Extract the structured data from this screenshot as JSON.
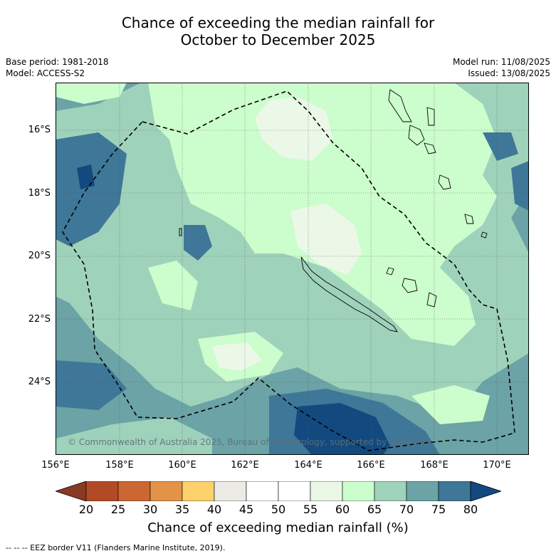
{
  "title": {
    "line1": "Chance of exceeding the median rainfall for",
    "line2": "October to December 2025"
  },
  "meta": {
    "base_period": "Base period: 1981-2018",
    "model": "Model: ACCESS-S2",
    "model_run": "Model run: 11/08/2025",
    "issued": "Issued: 13/08/2025"
  },
  "map": {
    "lat_labels": [
      "16°S",
      "18°S",
      "20°S",
      "22°S",
      "24°S"
    ],
    "lon_labels": [
      "156°E",
      "158°E",
      "160°E",
      "162°E",
      "164°E",
      "166°E",
      "168°E",
      "170°E"
    ],
    "copyright": "© Commonwealth of Australia 2025, Bureau of Meteorology, supported by COSPPac",
    "eez_style": "dashed black line",
    "land_style": "black outline"
  },
  "colorbar": {
    "labels": [
      "20",
      "25",
      "30",
      "35",
      "40",
      "45",
      "50",
      "55",
      "60",
      "65",
      "70",
      "75",
      "80"
    ],
    "colors": [
      "#8a3a22",
      "#b34a26",
      "#cc6633",
      "#e39448",
      "#ffd16b",
      "#ecebe6",
      "#ffffff",
      "#ffffff",
      "#ebf8e8",
      "#ccfdcc",
      "#9fd2bb",
      "#6ba3a6",
      "#3e7797",
      "#124a80"
    ],
    "title": "Chance of exceeding median rainfall (%)"
  },
  "footer": "--  --  -- EEZ border V11 (Flanders Marine Institute, 2019)."
}
